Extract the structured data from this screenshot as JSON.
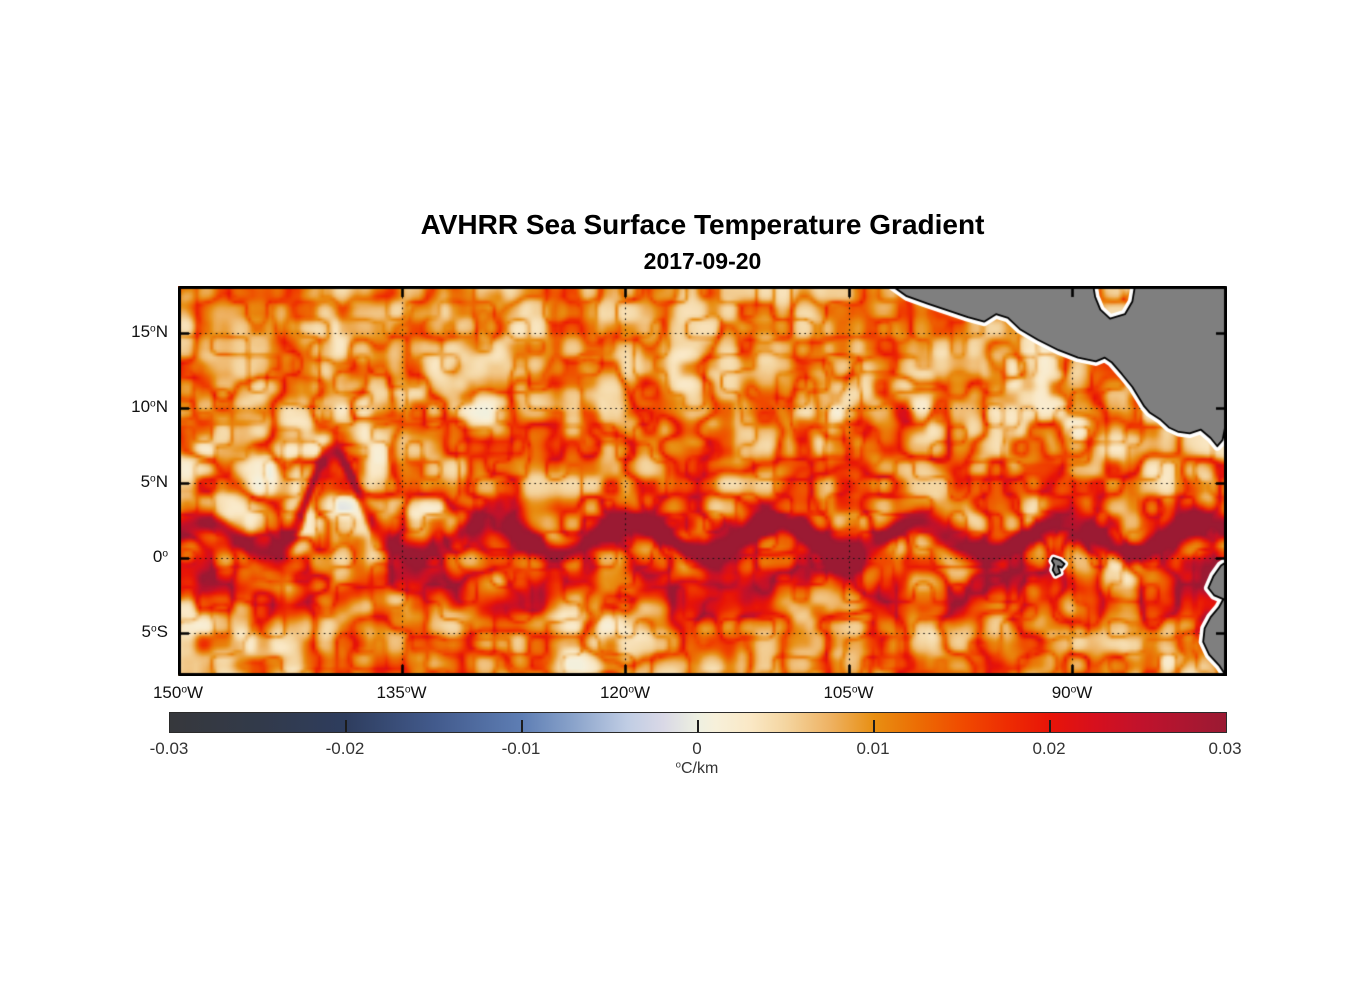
{
  "chart_data": {
    "type": "heatmap",
    "title": "AVHRR Sea Surface Temperature Gradient",
    "subtitle": "2017-09-20",
    "grid": "dotted",
    "x_axis": {
      "tick_labels": [
        "150°W",
        "135°W",
        "120°W",
        "105°W",
        "90°W"
      ],
      "tick_lon_west": [
        150,
        135,
        120,
        105,
        90
      ],
      "range_lon_west": [
        150,
        79.6
      ]
    },
    "y_axis": {
      "tick_labels": [
        "15°N",
        "10°N",
        "5°N",
        "0°",
        "5°S"
      ],
      "tick_lat": [
        15,
        10,
        5,
        0,
        -5
      ],
      "range_lat": [
        18.13,
        -7.87
      ]
    },
    "colorbar": {
      "label": "°C/km",
      "min": -0.03,
      "max": 0.03,
      "tick_values": [
        -0.03,
        -0.02,
        -0.01,
        0,
        0.01,
        0.02,
        0.03
      ],
      "tick_labels": [
        "-0.03",
        "-0.02",
        "-0.01",
        "0",
        "0.01",
        "0.02",
        "0.03"
      ],
      "interior_tick_values": [
        -0.02,
        -0.01,
        0,
        0.01,
        0.02
      ],
      "orientation": "horizontal",
      "colormap_stops": [
        [
          -0.03,
          "#36383c"
        ],
        [
          -0.025,
          "#323a4a"
        ],
        [
          -0.02,
          "#2e3d5e"
        ],
        [
          -0.015,
          "#425a8c"
        ],
        [
          -0.01,
          "#5e7eb4"
        ],
        [
          -0.007,
          "#8ba4cb"
        ],
        [
          -0.004,
          "#c0cde4"
        ],
        [
          -0.002,
          "#d9d8e6"
        ],
        [
          -0.001,
          "#e3e4e3"
        ],
        [
          0.0,
          "#eef0e1"
        ],
        [
          0.001,
          "#f7f0da"
        ],
        [
          0.003,
          "#fae8c5"
        ],
        [
          0.005,
          "#f4d5a0"
        ],
        [
          0.0075,
          "#eeb263"
        ],
        [
          0.01,
          "#e88f12"
        ],
        [
          0.0125,
          "#ec6d04"
        ],
        [
          0.015,
          "#f04b00"
        ],
        [
          0.0175,
          "#ee2d02"
        ],
        [
          0.02,
          "#e81408"
        ],
        [
          0.0225,
          "#d7101d"
        ],
        [
          0.025,
          "#c2122b"
        ],
        [
          0.0275,
          "#ae1630"
        ],
        [
          0.03,
          "#9a1a33"
        ]
      ]
    },
    "field": {
      "seed": 11,
      "base_value": 0.0016,
      "base_variation": 0.0036,
      "negative_patch_strength": 0.011,
      "filaments": {
        "scale_per_deg": 0.38,
        "amplitude": 0.016,
        "sharpness": 3.2,
        "fine_scale_per_deg": 0.85,
        "fine_amplitude": 0.0065
      },
      "north_equatorial_front": {
        "base_lat": 1.35,
        "meander_amp": 1.05,
        "meander_wavelength_deg": 9.6,
        "meander_phase": 0.45,
        "west_peak_lon_w": 139.8,
        "west_peak_lat_amp": 4.95,
        "west_peak_width_deg": 2.05,
        "width_base": 0.85,
        "width_var": 0.25,
        "strength_west": 0.0185,
        "strength_east_extra": 0.0085,
        "east_ramp_start_lon_w": 124,
        "east_ramp_span_deg": 10
      },
      "south_equatorial_front": {
        "base_lat": -2.15,
        "meander_amp": 1.1,
        "meander_wavelength_deg": 14,
        "meander_phase": 1.1,
        "width": 1.15,
        "strength": 0.0105,
        "strength_var": 0.0042
      },
      "peru_coastal_max": {
        "lon_w": 81.4,
        "lat": -2.4,
        "strength": 0.012,
        "lon_sigma": 2.4,
        "lat_sigma": 2.5
      }
    },
    "land": {
      "fill": "#7f7f7f",
      "outline": "#000000",
      "coast_halo": "#ffffff",
      "polygons": {
        "central_america": [
          [
            102.3,
            18.3
          ],
          [
            101.1,
            17.45
          ],
          [
            99.7,
            16.95
          ],
          [
            98.2,
            16.45
          ],
          [
            97.0,
            16.05
          ],
          [
            95.9,
            15.75
          ],
          [
            95.1,
            16.25
          ],
          [
            94.3,
            16.0
          ],
          [
            93.5,
            15.25
          ],
          [
            92.3,
            14.55
          ],
          [
            90.9,
            13.85
          ],
          [
            89.6,
            13.35
          ],
          [
            88.4,
            13.1
          ],
          [
            87.8,
            13.35
          ],
          [
            87.35,
            13.05
          ],
          [
            86.65,
            12.25
          ],
          [
            85.95,
            11.4
          ],
          [
            85.55,
            10.75
          ],
          [
            85.15,
            10.1
          ],
          [
            84.8,
            9.7
          ],
          [
            84.1,
            9.25
          ],
          [
            83.5,
            8.7
          ],
          [
            82.85,
            8.4
          ],
          [
            82.1,
            8.3
          ],
          [
            81.35,
            8.55
          ],
          [
            80.7,
            8.0
          ],
          [
            80.25,
            7.45
          ],
          [
            79.9,
            7.85
          ],
          [
            79.7,
            8.85
          ],
          [
            79.3,
            9.1
          ],
          [
            79.3,
            18.3
          ],
          [
            85.75,
            18.3
          ],
          [
            85.95,
            17.1
          ],
          [
            86.45,
            16.25
          ],
          [
            87.45,
            15.95
          ],
          [
            88.1,
            16.55
          ],
          [
            88.45,
            17.4
          ],
          [
            88.6,
            18.3
          ]
        ],
        "south_america": [
          [
            79.3,
            -0.05
          ],
          [
            80.0,
            -0.5
          ],
          [
            80.5,
            -1.2
          ],
          [
            80.85,
            -2.0
          ],
          [
            80.45,
            -2.5
          ],
          [
            79.85,
            -2.75
          ],
          [
            80.15,
            -3.3
          ],
          [
            80.7,
            -3.95
          ],
          [
            81.1,
            -4.7
          ],
          [
            81.2,
            -5.6
          ],
          [
            80.8,
            -6.45
          ],
          [
            80.1,
            -7.2
          ],
          [
            79.7,
            -7.8
          ],
          [
            79.5,
            -8.3
          ],
          [
            79.3,
            -8.3
          ]
        ],
        "galapagos": [
          [
            91.25,
            0.0
          ],
          [
            90.8,
            -0.15
          ],
          [
            90.5,
            -0.4
          ],
          [
            90.7,
            -0.65
          ],
          [
            90.95,
            -0.55
          ],
          [
            90.8,
            -1.0
          ],
          [
            91.1,
            -1.15
          ],
          [
            91.3,
            -0.8
          ],
          [
            91.2,
            -0.45
          ],
          [
            91.35,
            -0.2
          ]
        ]
      }
    }
  }
}
